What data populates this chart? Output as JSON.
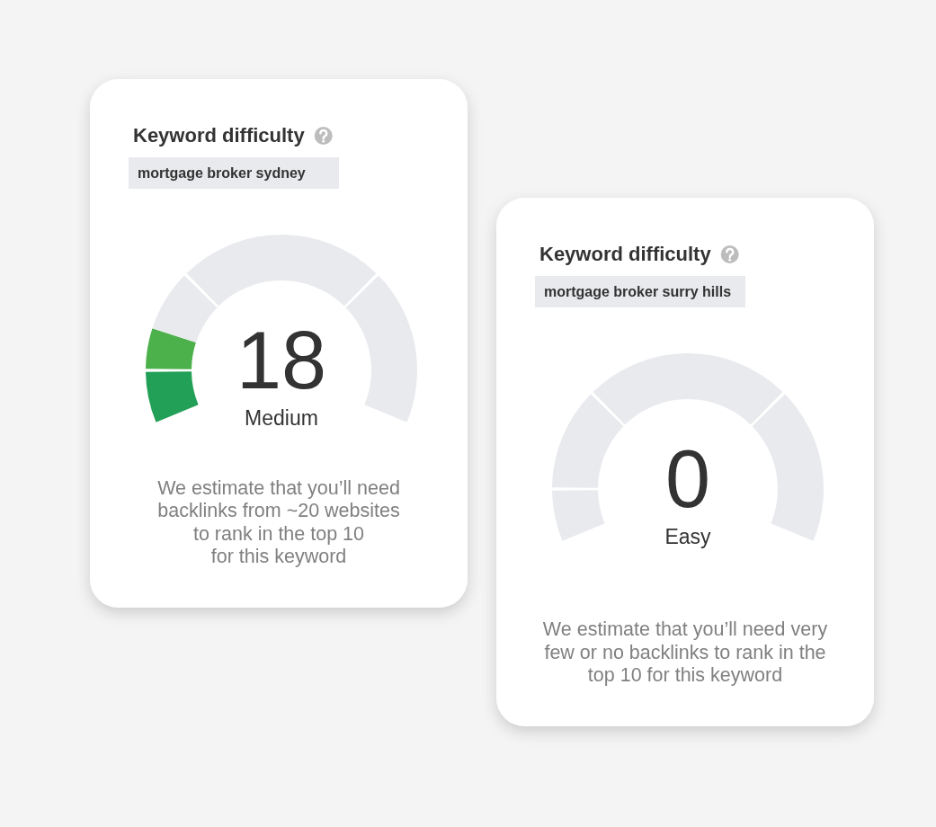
{
  "chart_data": [
    {
      "type": "donut",
      "title": "Keyword difficulty",
      "subtitle": "mortgage broker sydney",
      "categories": [
        null,
        null,
        null,
        null,
        null
      ],
      "values": [
        10,
        8,
        12,
        40,
        30
      ],
      "colors": [
        "#23a058",
        "#4cb04b",
        "#e8eaed",
        "#e8eaed",
        "#e8eaed"
      ],
      "annotations": [
        "18",
        "Medium",
        "We estimate that you’ll need\nbacklinks from ~20 websites\nto rank in the top 10\nfor this keyword"
      ]
    },
    {
      "type": "donut",
      "title": "Keyword difficulty",
      "subtitle": "mortgage broker surry hills",
      "categories": [
        null,
        null,
        null,
        null
      ],
      "values": [
        10,
        20,
        40,
        30
      ],
      "colors": [
        "#e8eaed",
        "#e8eaed",
        "#e8eaed",
        "#e8eaed"
      ],
      "annotations": [
        "0",
        "Easy",
        "We estimate that you’ll need very\nfew or no backlinks to rank in the\ntop 10 for this keyword"
      ]
    }
  ]
}
